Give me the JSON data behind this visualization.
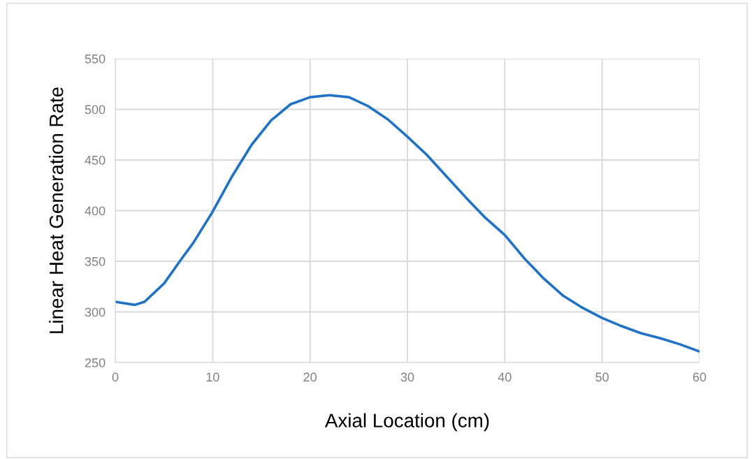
{
  "chart_data": {
    "type": "line",
    "xlabel": "Axial Location (cm)",
    "ylabel": "Linear Heat Generation Rate",
    "x": [
      0,
      2,
      3,
      5,
      7,
      8,
      10,
      12,
      14,
      16,
      18,
      20,
      22,
      24,
      26,
      28,
      30,
      32,
      34,
      36,
      38,
      40,
      42,
      44,
      46,
      48,
      50,
      52,
      54,
      56,
      58,
      60
    ],
    "series": [
      {
        "color": "#1f72c4",
        "values": [
          310,
          307,
          310,
          328,
          355,
          368,
          399,
          434,
          465,
          489,
          505,
          512,
          514,
          512,
          503,
          490,
          473,
          455,
          434,
          413,
          393,
          376,
          353,
          333,
          316,
          304,
          294,
          286,
          279,
          274,
          268,
          261
        ]
      }
    ],
    "xlim": [
      0,
      60
    ],
    "xticks": [
      0,
      10,
      20,
      30,
      40,
      50,
      60
    ],
    "ylim": [
      250,
      550
    ],
    "yticks": [
      250,
      300,
      350,
      400,
      450,
      500,
      550
    ],
    "grid": true,
    "marker": "none",
    "line_style": "solid"
  }
}
